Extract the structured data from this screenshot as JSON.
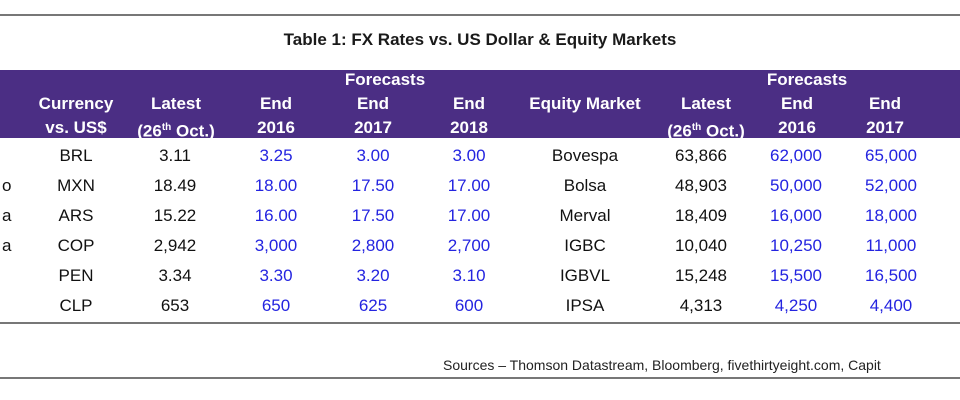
{
  "title": "Table 1: FX Rates vs. US Dollar & Equity Markets",
  "header": {
    "currency": [
      "Currency",
      "vs. US$"
    ],
    "latest_fx": [
      "Latest",
      "(26",
      "th",
      " Oct.)"
    ],
    "forecasts_fx": "Forecasts",
    "end_2016": [
      "End",
      "2016"
    ],
    "end_2017": [
      "End",
      "2017"
    ],
    "end_2018": [
      "End",
      "2018"
    ],
    "equity_market": "Equity Market",
    "latest_eq": [
      "Latest",
      "(26",
      "th",
      " Oct.)"
    ],
    "forecasts_eq": "Forecasts",
    "eq_end_2016": [
      "End",
      "2016"
    ],
    "eq_end_2017": [
      "End",
      "2017"
    ]
  },
  "rows": [
    {
      "label": "",
      "currency": "BRL",
      "latest": "3.11",
      "f2016": "3.25",
      "f2017": "3.00",
      "f2018": "3.00",
      "market": "Bovespa",
      "eq_latest": "63,866",
      "eq2016": "62,000",
      "eq2017": "65,000"
    },
    {
      "label": "o",
      "currency": "MXN",
      "latest": "18.49",
      "f2016": "18.00",
      "f2017": "17.50",
      "f2018": "17.00",
      "market": "Bolsa",
      "eq_latest": "48,903",
      "eq2016": "50,000",
      "eq2017": "52,000"
    },
    {
      "label": "a",
      "currency": "ARS",
      "latest": "15.22",
      "f2016": "16.00",
      "f2017": "17.50",
      "f2018": "17.00",
      "market": "Merval",
      "eq_latest": "18,409",
      "eq2016": "16,000",
      "eq2017": "18,000"
    },
    {
      "label": "a",
      "currency": "COP",
      "latest": "2,942",
      "f2016": "3,000",
      "f2017": "2,800",
      "f2018": "2,700",
      "market": "IGBC",
      "eq_latest": "10,040",
      "eq2016": "10,250",
      "eq2017": "11,000"
    },
    {
      "label": "",
      "currency": "PEN",
      "latest": "3.34",
      "f2016": "3.30",
      "f2017": "3.20",
      "f2018": "3.10",
      "market": "IGBVL",
      "eq_latest": "15,248",
      "eq2016": "15,500",
      "eq2017": "16,500"
    },
    {
      "label": "",
      "currency": "CLP",
      "latest": "653",
      "f2016": "650",
      "f2017": "625",
      "f2018": "600",
      "market": "IPSA",
      "eq_latest": "4,313",
      "eq2016": "4,250",
      "eq2017": "4,400"
    }
  ],
  "sources": "Sources – Thomson Datastream, Bloomberg, fivethirtyeight.com, Capit",
  "colors": {
    "header_bg": "#4b2e84",
    "forecast_text": "#2424e0",
    "rule": "#777777"
  }
}
